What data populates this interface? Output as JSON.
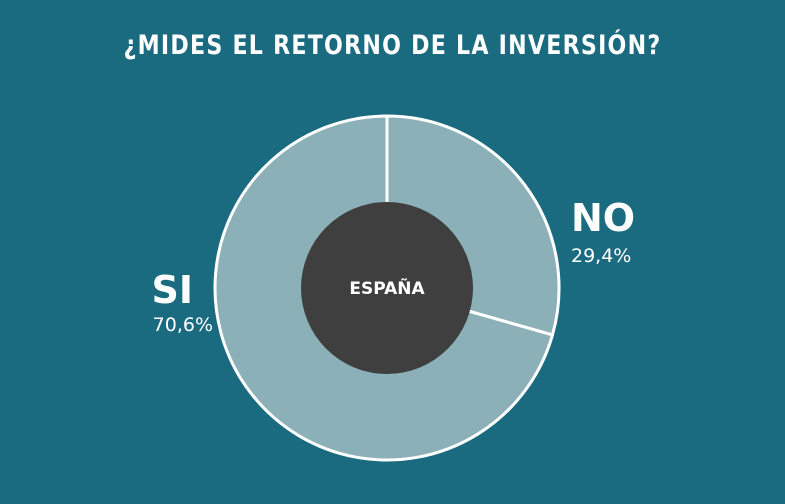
{
  "chart_data": {
    "type": "pie",
    "title": "¿MIDES EL RETORNO DE LA INVERSIÓN?",
    "center_label": "ESPAÑA",
    "slices": [
      {
        "label": "NO",
        "value": 29.4,
        "value_label": "29,4%",
        "color": "#8bb0b8"
      },
      {
        "label": "SI",
        "value": 70.6,
        "value_label": "70,6%",
        "color": "#8bb0b8"
      }
    ],
    "hole_color": "#3f3f40",
    "stroke_color": "#ffffff",
    "background": "#1b6b80"
  }
}
